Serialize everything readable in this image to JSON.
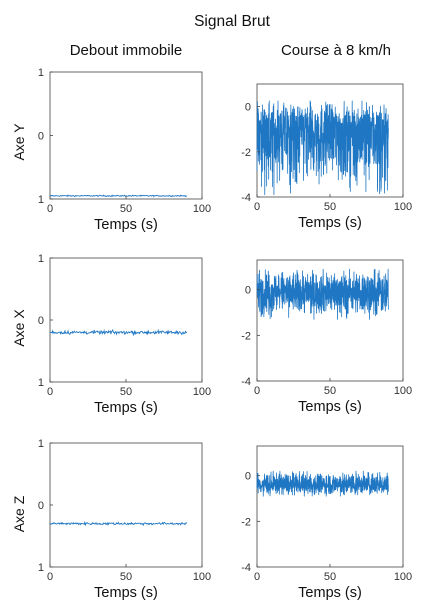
{
  "figure": {
    "title": "Signal Brut",
    "column_titles": [
      "Debout immobile",
      "Course à 8 km/h"
    ],
    "row_labels": [
      "Axe Y",
      "Axe X",
      "Axe Z"
    ],
    "series_color": "#1f77c4"
  },
  "chart_data": [
    {
      "type": "line",
      "panel": "Axe Y / Debout immobile",
      "xlabel": "Temps (s)",
      "ylabel": "Axe Y",
      "xlim": [
        0,
        100
      ],
      "ylim": [
        -1,
        1
      ],
      "xticks": [
        0,
        50,
        100
      ],
      "ytick_labels": [
        "1",
        "0",
        "1"
      ],
      "signal": {
        "x_start": 0,
        "x_end": 90,
        "mean": -0.95,
        "amplitude": 0.01
      }
    },
    {
      "type": "line",
      "panel": "Axe Y / Course à 8 km/h",
      "xlabel": "Temps (s)",
      "ylabel": "",
      "xlim": [
        0,
        100
      ],
      "ylim": [
        -4,
        1
      ],
      "xticks": [
        0,
        50,
        100
      ],
      "yticks": [
        0,
        -2,
        -4
      ],
      "signal": {
        "x_start": 0,
        "x_end": 90,
        "mean": -1.0,
        "min": -3.9,
        "max": 0.25
      }
    },
    {
      "type": "line",
      "panel": "Axe X / Debout immobile",
      "xlabel": "Temps (s)",
      "ylabel": "Axe X",
      "xlim": [
        0,
        100
      ],
      "ylim": [
        -1,
        1
      ],
      "xticks": [
        0,
        50,
        100
      ],
      "ytick_labels": [
        "1",
        "0",
        "1"
      ],
      "signal": {
        "x_start": 0,
        "x_end": 90,
        "mean": -0.2,
        "amplitude": 0.03
      }
    },
    {
      "type": "line",
      "panel": "Axe X / Course à 8 km/h",
      "xlabel": "Temps (s)",
      "ylabel": "",
      "xlim": [
        0,
        100
      ],
      "ylim": [
        -4,
        1.3
      ],
      "xticks": [
        0,
        50,
        100
      ],
      "yticks": [
        0,
        -2,
        -4
      ],
      "signal": {
        "x_start": 0,
        "x_end": 90,
        "mean": -0.1,
        "min": -1.3,
        "max": 0.9
      }
    },
    {
      "type": "line",
      "panel": "Axe Z / Debout immobile",
      "xlabel": "Temps (s)",
      "ylabel": "Axe Z",
      "xlim": [
        0,
        100
      ],
      "ylim": [
        -1,
        1
      ],
      "xticks": [
        0,
        50,
        100
      ],
      "ytick_labels": [
        "1",
        "0",
        "1"
      ],
      "signal": {
        "x_start": 0,
        "x_end": 90,
        "mean": -0.3,
        "amplitude": 0.02
      }
    },
    {
      "type": "line",
      "panel": "Axe Z / Course à 8 km/h",
      "xlabel": "Temps (s)",
      "ylabel": "",
      "xlim": [
        0,
        100
      ],
      "ylim": [
        -4,
        1.3
      ],
      "xticks": [
        0,
        50,
        100
      ],
      "yticks": [
        0,
        -2,
        -4
      ],
      "signal": {
        "x_start": 0,
        "x_end": 90,
        "mean": -0.4,
        "min": -0.9,
        "max": 0.2
      }
    }
  ]
}
